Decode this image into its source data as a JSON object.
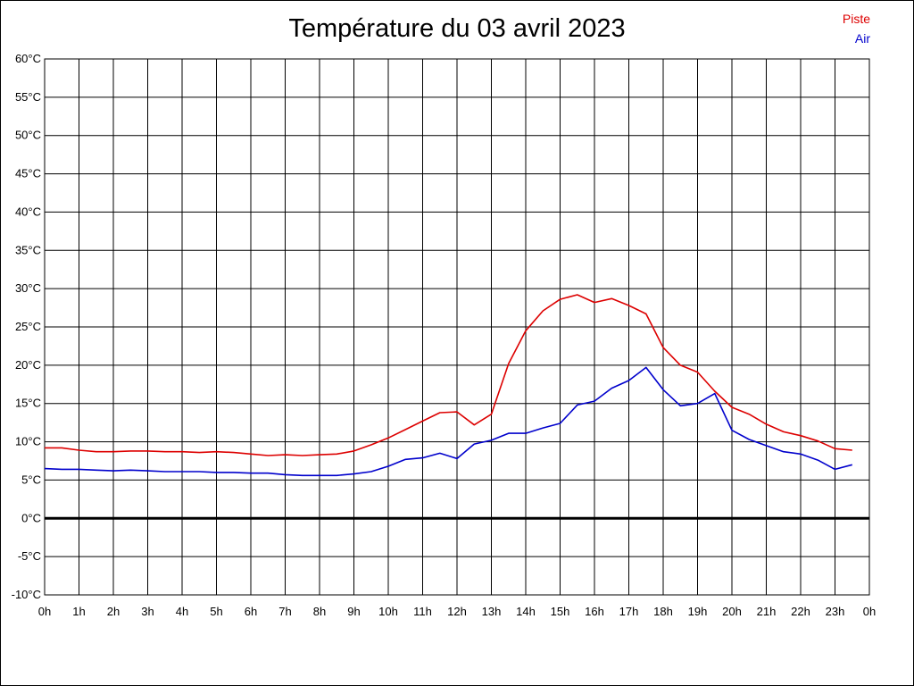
{
  "chart_data": {
    "type": "line",
    "title": "Température du 03 avril 2023",
    "xlabel": "",
    "ylabel": "",
    "ylim": [
      -10,
      60
    ],
    "xlim": [
      0,
      24
    ],
    "grid": true,
    "legend_position": "top-right",
    "y_ticks": [
      {
        "value": 60,
        "label": "60°C"
      },
      {
        "value": 55,
        "label": "55°C"
      },
      {
        "value": 50,
        "label": "50°C"
      },
      {
        "value": 45,
        "label": "45°C"
      },
      {
        "value": 40,
        "label": "40°C"
      },
      {
        "value": 35,
        "label": "35°C"
      },
      {
        "value": 30,
        "label": "30°C"
      },
      {
        "value": 25,
        "label": "25°C"
      },
      {
        "value": 20,
        "label": "20°C"
      },
      {
        "value": 15,
        "label": "15°C"
      },
      {
        "value": 10,
        "label": "10°C"
      },
      {
        "value": 5,
        "label": "5°C"
      },
      {
        "value": 0,
        "label": "0°C"
      },
      {
        "value": -5,
        "label": "-5°C"
      },
      {
        "value": -10,
        "label": "-10°C"
      }
    ],
    "x_ticks": [
      {
        "value": 0,
        "label": "0h"
      },
      {
        "value": 1,
        "label": "1h"
      },
      {
        "value": 2,
        "label": "2h"
      },
      {
        "value": 3,
        "label": "3h"
      },
      {
        "value": 4,
        "label": "4h"
      },
      {
        "value": 5,
        "label": "5h"
      },
      {
        "value": 6,
        "label": "6h"
      },
      {
        "value": 7,
        "label": "7h"
      },
      {
        "value": 8,
        "label": "8h"
      },
      {
        "value": 9,
        "label": "9h"
      },
      {
        "value": 10,
        "label": "10h"
      },
      {
        "value": 11,
        "label": "11h"
      },
      {
        "value": 12,
        "label": "12h"
      },
      {
        "value": 13,
        "label": "13h"
      },
      {
        "value": 14,
        "label": "14h"
      },
      {
        "value": 15,
        "label": "15h"
      },
      {
        "value": 16,
        "label": "16h"
      },
      {
        "value": 17,
        "label": "17h"
      },
      {
        "value": 18,
        "label": "18h"
      },
      {
        "value": 19,
        "label": "19h"
      },
      {
        "value": 20,
        "label": "20h"
      },
      {
        "value": 21,
        "label": "21h"
      },
      {
        "value": 22,
        "label": "22h"
      },
      {
        "value": 23,
        "label": "23h"
      },
      {
        "value": 24,
        "label": "0h"
      }
    ],
    "zero_line": {
      "value": 0,
      "color": "#000000"
    },
    "series": [
      {
        "name": "Piste",
        "color": "#dd0000",
        "points": [
          [
            0,
            9.2
          ],
          [
            0.5,
            9.2
          ],
          [
            1,
            8.9
          ],
          [
            1.5,
            8.7
          ],
          [
            2,
            8.7
          ],
          [
            2.5,
            8.8
          ],
          [
            3,
            8.8
          ],
          [
            3.5,
            8.7
          ],
          [
            4,
            8.7
          ],
          [
            4.5,
            8.6
          ],
          [
            5,
            8.7
          ],
          [
            5.5,
            8.6
          ],
          [
            6,
            8.4
          ],
          [
            6.5,
            8.2
          ],
          [
            7,
            8.3
          ],
          [
            7.5,
            8.2
          ],
          [
            8,
            8.3
          ],
          [
            8.5,
            8.4
          ],
          [
            9,
            8.8
          ],
          [
            9.5,
            9.6
          ],
          [
            10,
            10.5
          ],
          [
            10.5,
            11.6
          ],
          [
            11,
            12.7
          ],
          [
            11.5,
            13.8
          ],
          [
            12,
            13.9
          ],
          [
            12.5,
            12.2
          ],
          [
            13,
            13.6
          ],
          [
            13.5,
            20.2
          ],
          [
            14,
            24.5
          ],
          [
            14.5,
            27.1
          ],
          [
            15,
            28.6
          ],
          [
            15.5,
            29.2
          ],
          [
            16,
            28.2
          ],
          [
            16.5,
            28.7
          ],
          [
            17,
            27.8
          ],
          [
            17.5,
            26.7
          ],
          [
            18,
            22.3
          ],
          [
            18.5,
            20.0
          ],
          [
            19,
            19.1
          ],
          [
            19.5,
            16.6
          ],
          [
            20,
            14.5
          ],
          [
            20.5,
            13.6
          ],
          [
            21,
            12.3
          ],
          [
            21.5,
            11.3
          ],
          [
            22,
            10.8
          ],
          [
            22.5,
            10.1
          ],
          [
            23,
            9.1
          ],
          [
            23.5,
            8.9
          ]
        ]
      },
      {
        "name": "Air",
        "color": "#0000cc",
        "points": [
          [
            0,
            6.5
          ],
          [
            0.5,
            6.4
          ],
          [
            1,
            6.4
          ],
          [
            1.5,
            6.3
          ],
          [
            2,
            6.2
          ],
          [
            2.5,
            6.3
          ],
          [
            3,
            6.2
          ],
          [
            3.5,
            6.1
          ],
          [
            4,
            6.1
          ],
          [
            4.5,
            6.1
          ],
          [
            5,
            6.0
          ],
          [
            5.5,
            6.0
          ],
          [
            6,
            5.9
          ],
          [
            6.5,
            5.9
          ],
          [
            7,
            5.7
          ],
          [
            7.5,
            5.6
          ],
          [
            8,
            5.6
          ],
          [
            8.5,
            5.6
          ],
          [
            9,
            5.8
          ],
          [
            9.5,
            6.1
          ],
          [
            10,
            6.8
          ],
          [
            10.5,
            7.7
          ],
          [
            11,
            7.9
          ],
          [
            11.5,
            8.5
          ],
          [
            12,
            7.8
          ],
          [
            12.5,
            9.7
          ],
          [
            13,
            10.2
          ],
          [
            13.5,
            11.1
          ],
          [
            14,
            11.1
          ],
          [
            14.5,
            11.8
          ],
          [
            15,
            12.4
          ],
          [
            15.5,
            14.8
          ],
          [
            16,
            15.3
          ],
          [
            16.5,
            17.0
          ],
          [
            17,
            18.0
          ],
          [
            17.5,
            19.7
          ],
          [
            18,
            16.8
          ],
          [
            18.5,
            14.7
          ],
          [
            19,
            15.0
          ],
          [
            19.5,
            16.3
          ],
          [
            20,
            11.5
          ],
          [
            20.5,
            10.3
          ],
          [
            21,
            9.5
          ],
          [
            21.5,
            8.7
          ],
          [
            22,
            8.4
          ],
          [
            22.5,
            7.6
          ],
          [
            23,
            6.4
          ],
          [
            23.5,
            7.0
          ]
        ]
      }
    ]
  }
}
